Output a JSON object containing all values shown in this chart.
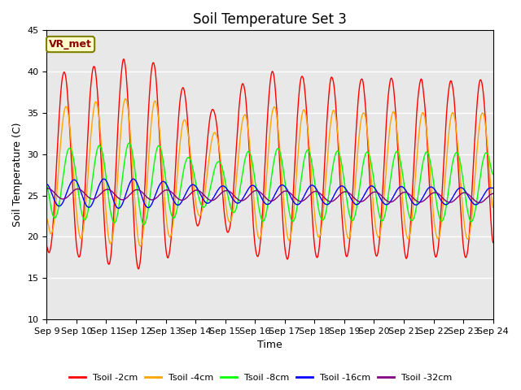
{
  "title": "Soil Temperature Set 3",
  "xlabel": "Time",
  "ylabel": "Soil Temperature (C)",
  "ylim": [
    10,
    45
  ],
  "yticks": [
    10,
    15,
    20,
    25,
    30,
    35,
    40,
    45
  ],
  "xlim_days": [
    9,
    24
  ],
  "xtick_labels": [
    "Sep 9",
    "Sep 10",
    "Sep 11",
    "Sep 12",
    "Sep 13",
    "Sep 14",
    "Sep 15",
    "Sep 16",
    "Sep 17",
    "Sep 18",
    "Sep 19",
    "Sep 20",
    "Sep 21",
    "Sep 22",
    "Sep 23",
    "Sep 24"
  ],
  "legend_labels": [
    "Tsoil -2cm",
    "Tsoil -4cm",
    "Tsoil -8cm",
    "Tsoil -16cm",
    "Tsoil -32cm"
  ],
  "line_colors": [
    "red",
    "orange",
    "lime",
    "blue",
    "purple"
  ],
  "annotation_text": "VR_met",
  "annotation_box_color": "#ffffcc",
  "annotation_border_color": "#808000",
  "background_color": "#e8e8e8",
  "grid_color": "white",
  "title_fontsize": 12,
  "label_fontsize": 9,
  "tick_fontsize": 8
}
